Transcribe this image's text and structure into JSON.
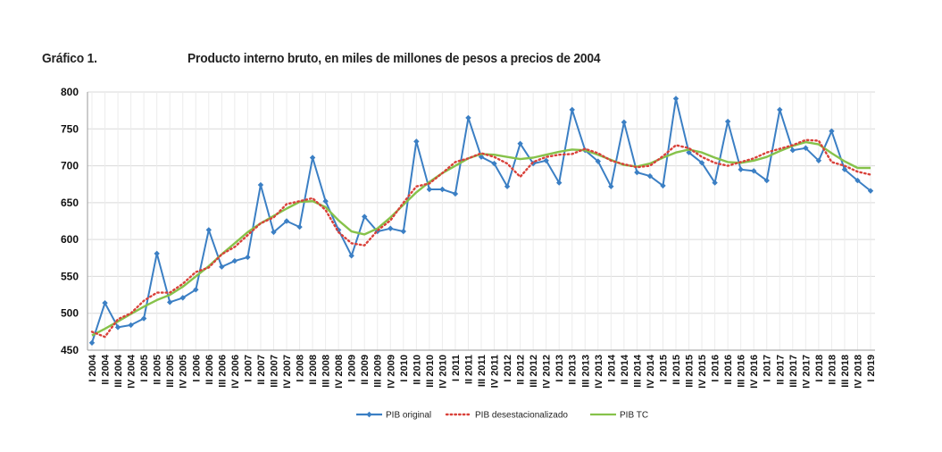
{
  "header": {
    "figure_label": "Gráfico 1.",
    "title": "Producto interno bruto, en miles de millones de pesos a precios de 2004"
  },
  "chart_data": {
    "type": "line",
    "title": "Producto interno bruto, en miles de millones de pesos a precios de 2004",
    "xlabel": "",
    "ylabel": "",
    "ylim": [
      450,
      800
    ],
    "yticks": [
      450,
      500,
      550,
      600,
      650,
      700,
      750,
      800
    ],
    "grid": true,
    "legend_position": "bottom",
    "categories": [
      "I 2004",
      "II 2004",
      "III 2004",
      "IV 2004",
      "I 2005",
      "II 2005",
      "III 2005",
      "IV 2005",
      "I 2006",
      "II 2006",
      "III 2006",
      "IV 2006",
      "I 2007",
      "II 2007",
      "III 2007",
      "IV 2007",
      "I 2008",
      "II 2008",
      "III 2008",
      "IV 2008",
      "I 2009",
      "II 2009",
      "III 2009",
      "IV 2009",
      "I 2010",
      "II 2010",
      "III 2010",
      "IV 2010",
      "I 2011",
      "II 2011",
      "III 2011",
      "IV 2011",
      "I 2012",
      "II 2012",
      "III 2012",
      "IV 2012",
      "I 2013",
      "II 2013",
      "III 2013",
      "IV 2013",
      "I 2014",
      "II 2014",
      "III 2014",
      "IV 2014",
      "I 2015",
      "II 2015",
      "III 2015",
      "IV 2015",
      "I 2016",
      "II 2016",
      "III 2016",
      "IV 2016",
      "I 2017",
      "II 2017",
      "III 2017",
      "IV 2017",
      "I 2018",
      "II 2018",
      "III 2018",
      "IV 2018",
      "I 2019"
    ],
    "series": [
      {
        "name": "PIB original",
        "color": "#3b7fc4",
        "style": "solid-markers",
        "values": [
          460,
          514,
          481,
          484,
          493,
          581,
          515,
          521,
          532,
          613,
          563,
          571,
          576,
          674,
          610,
          625,
          617,
          711,
          652,
          613,
          578,
          631,
          611,
          615,
          611,
          733,
          668,
          668,
          662,
          765,
          712,
          703,
          672,
          730,
          703,
          707,
          677,
          776,
          721,
          706,
          672,
          759,
          691,
          686,
          673,
          791,
          718,
          704,
          677,
          760,
          695,
          693,
          680,
          776,
          721,
          724,
          707,
          747,
          695,
          680,
          666
        ]
      },
      {
        "name": "PIB desestacionalizado",
        "color": "#d9413a",
        "style": "dotted",
        "values": [
          475,
          468,
          492,
          500,
          517,
          528,
          528,
          540,
          556,
          562,
          580,
          590,
          606,
          622,
          630,
          648,
          652,
          656,
          640,
          610,
          595,
          592,
          612,
          626,
          650,
          672,
          676,
          690,
          705,
          710,
          717,
          712,
          703,
          685,
          705,
          712,
          715,
          716,
          723,
          717,
          707,
          702,
          698,
          700,
          713,
          728,
          724,
          712,
          704,
          700,
          705,
          710,
          718,
          723,
          728,
          735,
          734,
          705,
          700,
          692,
          688
        ]
      },
      {
        "name": "PIB TC",
        "color": "#86c24a",
        "style": "solid",
        "values": [
          470,
          479,
          489,
          499,
          509,
          518,
          525,
          536,
          550,
          564,
          580,
          595,
          610,
          622,
          632,
          642,
          651,
          652,
          644,
          626,
          611,
          607,
          615,
          630,
          647,
          664,
          678,
          690,
          700,
          710,
          716,
          715,
          712,
          709,
          711,
          715,
          719,
          722,
          721,
          715,
          708,
          701,
          699,
          703,
          711,
          718,
          722,
          718,
          711,
          705,
          704,
          707,
          712,
          720,
          727,
          732,
          729,
          717,
          706,
          697,
          697
        ]
      }
    ]
  }
}
